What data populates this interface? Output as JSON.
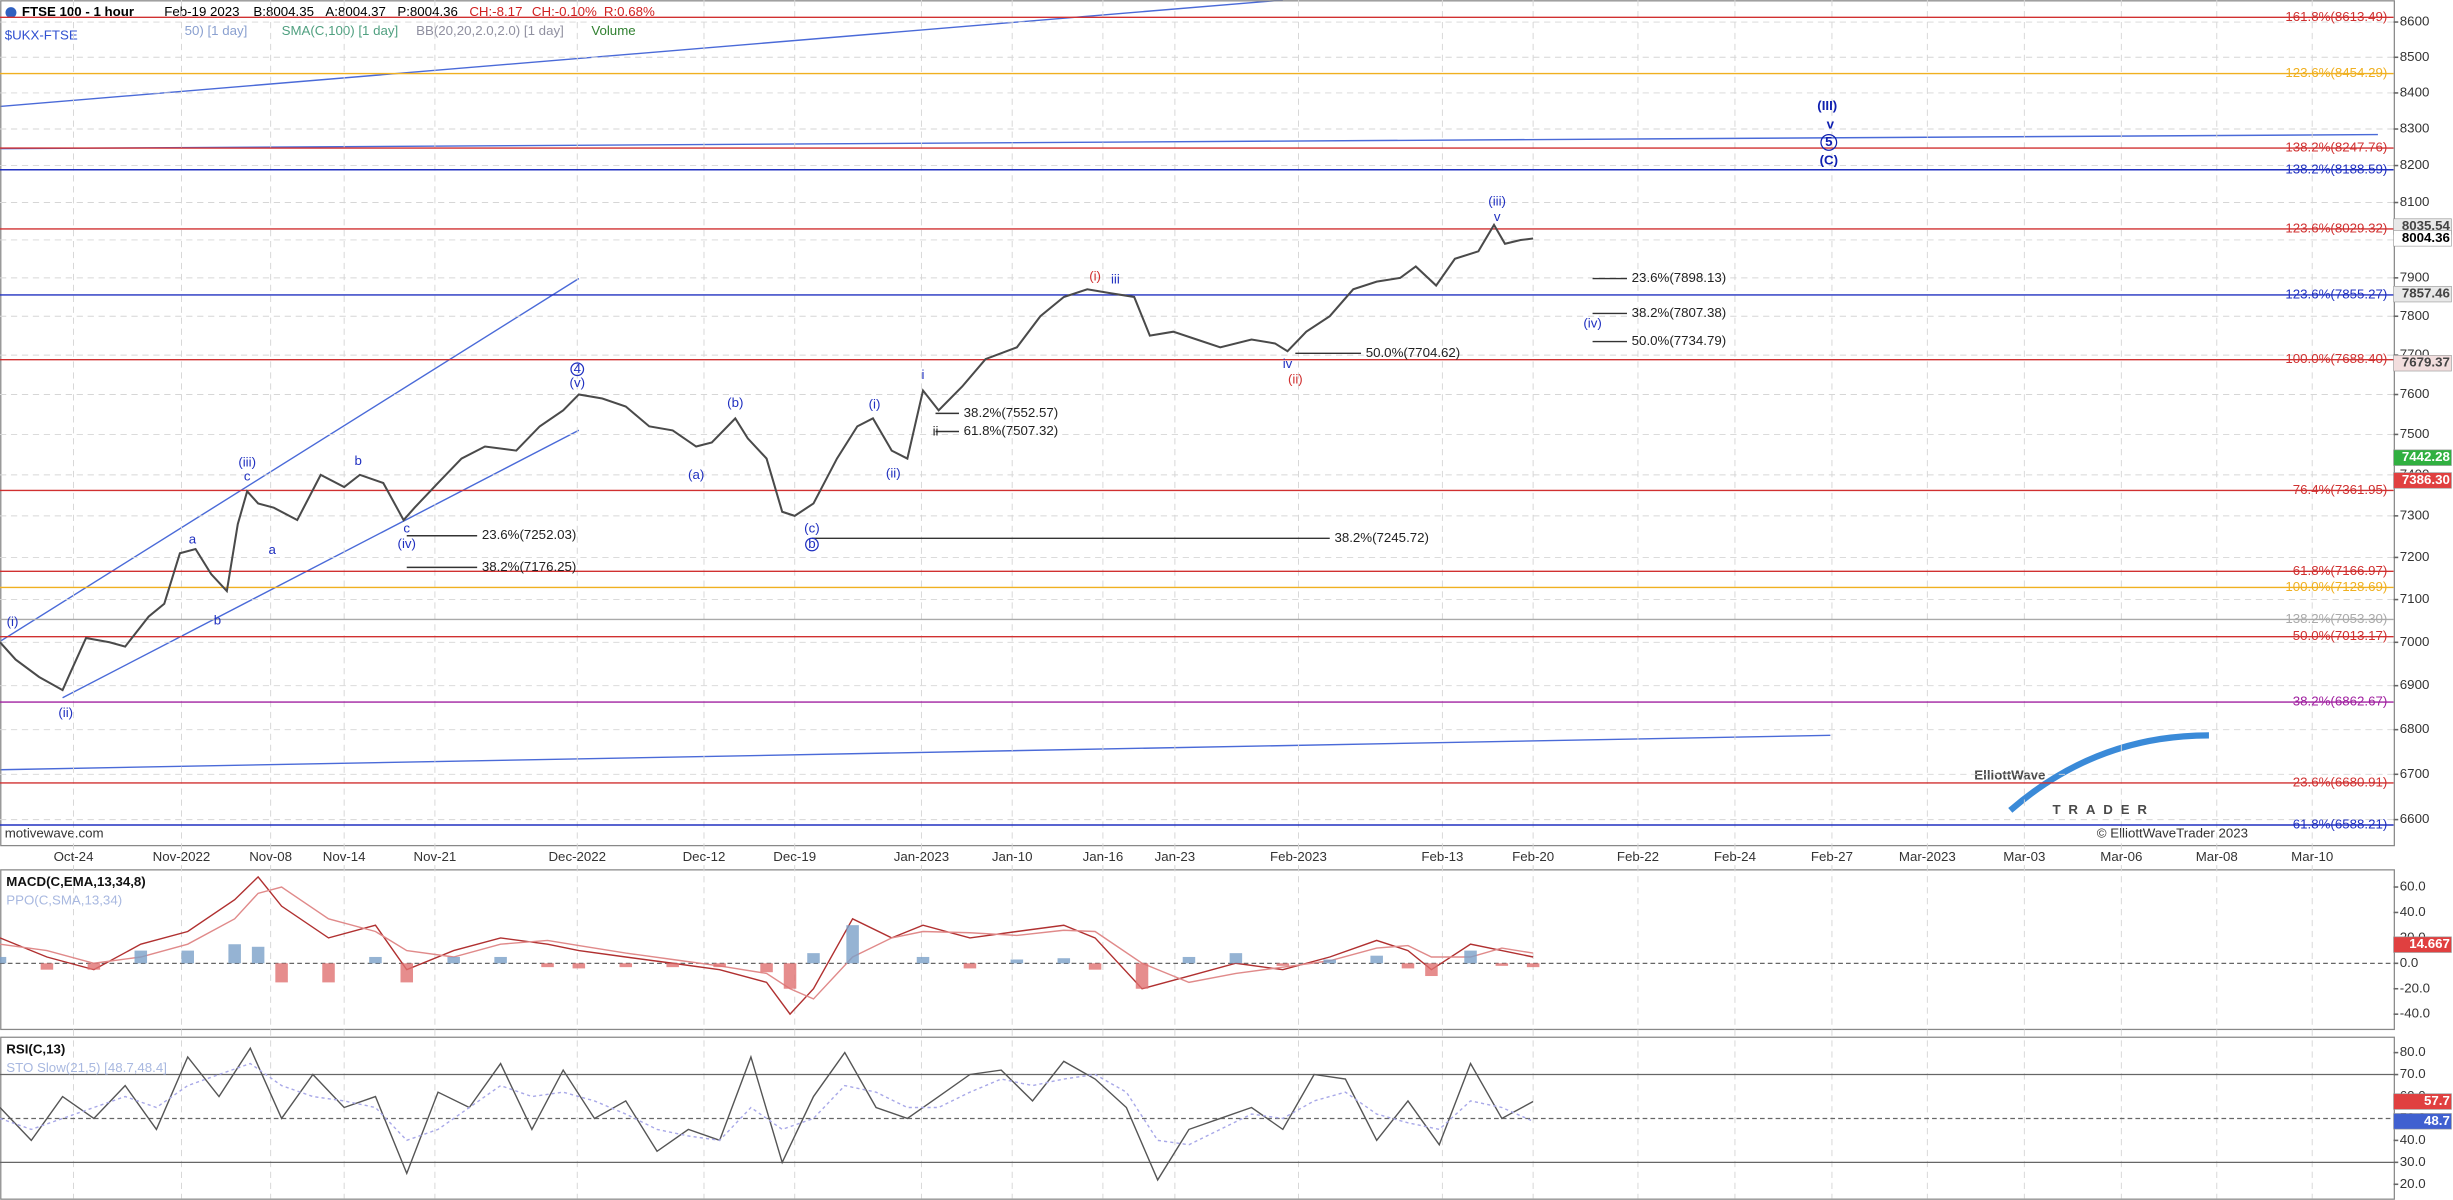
{
  "header": {
    "date": "Feb-19 2023",
    "bid": "B:8004.35",
    "ask": "A:8004.37",
    "price": "P:8004.36",
    "change": "CH:-8.17",
    "change_pct": "CH:-0.10%",
    "range": "R:0.68%",
    "studies": [
      "50) [1 day]",
      "SMA(C,100) [1 day]",
      "BB(20,20,2.0,2.0) [1 day]",
      "Volume"
    ],
    "source": "motivewave.com",
    "copyright": "© ElliottWaveTrader 2023",
    "logo_top": "ElliottWave",
    "logo_bottom": "TRADER"
  },
  "chart_data": [
    {
      "type": "line",
      "title": "$UKX-FTSE",
      "x": [
        0,
        10,
        25,
        40,
        45,
        55,
        70,
        80,
        95,
        105,
        115,
        125,
        135,
        145,
        152,
        158,
        165,
        175,
        190,
        205,
        220,
        230,
        245,
        258,
        265,
        280,
        295,
        310,
        330,
        345,
        360,
        370,
        385,
        400,
        415,
        430,
        445,
        455,
        470,
        478,
        490,
        500,
        508,
        520,
        535,
        548,
        558,
        570,
        580,
        590,
        600,
        615,
        630,
        650,
        665,
        680,
        695,
        710,
        725,
        735,
        750,
        765,
        780,
        800,
        815,
        823,
        835,
        850,
        865,
        880,
        895,
        905,
        918,
        930,
        945,
        955,
        962,
        972,
        980
      ],
      "series": [
        {
          "name": "FTSE 100 - 1 hour",
          "color": "#4a4a4a",
          "values": [
            7000,
            6960,
            6920,
            6890,
            6930,
            7010,
            7000,
            6990,
            7060,
            7090,
            7210,
            7220,
            7160,
            7120,
            7280,
            7360,
            7330,
            7320,
            7290,
            7400,
            7370,
            7400,
            7380,
            7290,
            7320,
            7380,
            7440,
            7470,
            7460,
            7520,
            7560,
            7600,
            7590,
            7570,
            7520,
            7510,
            7470,
            7480,
            7540,
            7490,
            7440,
            7310,
            7300,
            7330,
            7440,
            7520,
            7540,
            7460,
            7440,
            7610,
            7560,
            7620,
            7690,
            7720,
            7800,
            7850,
            7870,
            7860,
            7850,
            7750,
            7760,
            7740,
            7720,
            7740,
            7730,
            7710,
            7760,
            7800,
            7870,
            7890,
            7900,
            7930,
            7880,
            7950,
            7970,
            8040,
            7990,
            8000,
            8004
          ]
        }
      ],
      "xlim": [
        0,
        1530
      ],
      "xticks": [
        {
          "value": 47,
          "label": "Oct-24"
        },
        {
          "value": 116,
          "label": "Nov-2022"
        },
        {
          "value": 173,
          "label": "Nov-08"
        },
        {
          "value": 220,
          "label": "Nov-14"
        },
        {
          "value": 278,
          "label": "Nov-21"
        },
        {
          "value": 369,
          "label": "Dec-2022"
        },
        {
          "value": 450,
          "label": "Dec-12"
        },
        {
          "value": 508,
          "label": "Dec-19"
        },
        {
          "value": 589,
          "label": "Jan-2023"
        },
        {
          "value": 647,
          "label": "Jan-10"
        },
        {
          "value": 705,
          "label": "Jan-16"
        },
        {
          "value": 751,
          "label": "Jan-23"
        },
        {
          "value": 830,
          "label": "Feb-2023"
        },
        {
          "value": 922,
          "label": "Feb-13"
        },
        {
          "value": 980,
          "label": "Feb-20"
        },
        {
          "value": 1047,
          "label": "Feb-22"
        },
        {
          "value": 1109,
          "label": "Feb-24"
        },
        {
          "value": 1171,
          "label": "Feb-27"
        },
        {
          "value": 1232,
          "label": "Mar-2023"
        },
        {
          "value": 1294,
          "label": "Mar-03"
        },
        {
          "value": 1356,
          "label": "Mar-06"
        },
        {
          "value": 1417,
          "label": "Mar-08"
        },
        {
          "value": 1478,
          "label": "Mar-10"
        }
      ],
      "ylim": [
        6545,
        8654
      ],
      "log_scale": true,
      "grid": true,
      "yticks": [
        6600,
        6700,
        6800,
        6900,
        7000,
        7100,
        7200,
        7300,
        7400,
        7500,
        7600,
        7700,
        7800,
        7900,
        8000,
        8100,
        8200,
        8300,
        8400,
        8500,
        8600
      ],
      "fib_levels": [
        {
          "value": 8613.49,
          "label": "161.8%(8613.49)",
          "color": "#d03030"
        },
        {
          "value": 8454.29,
          "label": "123.6%(8454.29)",
          "color": "#f0b020"
        },
        {
          "value": 8247.76,
          "label": "138.2%(8247.76)",
          "color": "#d03030"
        },
        {
          "value": 8188.59,
          "label": "138.2%(8188.59)",
          "color": "#2030c0"
        },
        {
          "value": 8029.32,
          "label": "123.6%(8029.32)",
          "color": "#d03030"
        },
        {
          "value": 7855.27,
          "label": "123.6%(7855.27)",
          "color": "#2030c0"
        },
        {
          "value": 7688.4,
          "label": "100.0%(7688.40)",
          "color": "#d03030"
        },
        {
          "value": 7361.95,
          "label": "76.4%(7361.95)",
          "color": "#d03030"
        },
        {
          "value": 7166.97,
          "label": "61.8%(7166.97)",
          "color": "#d03030"
        },
        {
          "value": 7128.69,
          "label": "100.0%(7128.69)",
          "color": "#f0b020"
        },
        {
          "value": 7053.3,
          "label": "138.2%(7053.30)",
          "color": "#aaaaaa"
        },
        {
          "value": 7013.17,
          "label": "50.0%(7013.17)",
          "color": "#d03030"
        },
        {
          "value": 6862.67,
          "label": "38.2%(6862.67)",
          "color": "#a020a0"
        },
        {
          "value": 6680.91,
          "label": "23.6%(6680.91)",
          "color": "#d03030"
        },
        {
          "value": 6588.21,
          "label": "61.8%(6588.21)",
          "color": "#2030c0"
        }
      ],
      "retracements": [
        {
          "value": 7898.13,
          "label": "23.6%(7898.13)"
        },
        {
          "value": 7807.38,
          "label": "38.2%(7807.38)"
        },
        {
          "value": 7734.79,
          "label": "50.0%(7734.79)"
        },
        {
          "value": 7704.62,
          "label": "50.0%(7704.62)"
        },
        {
          "value": 7552.57,
          "label": "38.2%(7552.57)"
        },
        {
          "value": 7507.32,
          "label": "61.8%(7507.32)"
        },
        {
          "value": 7252.03,
          "label": "23.6%(7252.03)"
        },
        {
          "value": 7176.25,
          "label": "38.2%(7176.25)"
        },
        {
          "value": 7245.72,
          "label": "38.2%(7245.72)"
        }
      ],
      "wave_labels": [
        "(i)",
        "(ii)",
        "a",
        "b",
        "(iii)",
        "c",
        "a",
        "b",
        "c",
        "(iv)",
        "4",
        "(v)",
        "(a)",
        "(b)",
        "(c)",
        "b",
        "(i)",
        "(ii)",
        "i",
        "ii",
        "(i)",
        "iii",
        "iv",
        "(ii)",
        "(iii)",
        "v",
        "(iv)",
        "(III)",
        "v",
        "5",
        "(C)"
      ],
      "price_tags": [
        {
          "value": 8035.54,
          "label": "8035.54",
          "bg": "#e8e8e8",
          "fg": "#444"
        },
        {
          "value": 8004.36,
          "label": "8004.36",
          "bg": "#ffffff",
          "fg": "#000"
        },
        {
          "value": 7857.46,
          "label": "7857.46",
          "bg": "#e8e8e8",
          "fg": "#444"
        },
        {
          "value": 7679.37,
          "label": "7679.37",
          "bg": "#f2dede",
          "fg": "#444"
        },
        {
          "value": 7442.28,
          "label": "7442.28",
          "bg": "#30b040",
          "fg": "#fff"
        },
        {
          "value": 7386.3,
          "label": "7386.30",
          "bg": "#e04040",
          "fg": "#fff"
        }
      ]
    },
    {
      "type": "line",
      "title": "MACD(C,EMA,13,34,8)",
      "subtitle": "PPO(C,SMA,13,34)",
      "x": [
        0,
        30,
        60,
        90,
        120,
        150,
        165,
        180,
        210,
        240,
        260,
        290,
        320,
        350,
        370,
        400,
        430,
        460,
        490,
        505,
        520,
        545,
        570,
        590,
        620,
        650,
        680,
        700,
        730,
        760,
        790,
        820,
        850,
        880,
        900,
        915,
        940,
        960,
        980
      ],
      "series": [
        {
          "color": "#b03030",
          "values": [
            20,
            5,
            -5,
            15,
            25,
            50,
            68,
            45,
            20,
            30,
            -5,
            10,
            20,
            15,
            10,
            5,
            0,
            -5,
            -15,
            -40,
            -20,
            35,
            20,
            30,
            20,
            25,
            30,
            20,
            -20,
            -10,
            0,
            -5,
            5,
            18,
            10,
            -5,
            15,
            10,
            5
          ]
        },
        {
          "color": "#e08a8a",
          "values": [
            15,
            10,
            0,
            5,
            15,
            35,
            55,
            60,
            35,
            25,
            10,
            5,
            15,
            18,
            14,
            8,
            3,
            -2,
            -8,
            -20,
            -28,
            5,
            20,
            25,
            24,
            22,
            26,
            25,
            0,
            -15,
            -8,
            -3,
            2,
            12,
            14,
            5,
            5,
            12,
            8
          ]
        },
        {
          "type": "histogram",
          "color": "#7aa0c8",
          "negative_color": "#e07070",
          "values": [
            5,
            -5,
            -5,
            10,
            10,
            15,
            13,
            -15,
            -15,
            5,
            -15,
            5,
            5,
            -3,
            -4,
            -3,
            -3,
            -3,
            -7,
            -20,
            8,
            30,
            0,
            5,
            -4,
            3,
            4,
            -5,
            -20,
            5,
            8,
            -2,
            3,
            6,
            -4,
            -10,
            10,
            -2,
            -3
          ]
        }
      ],
      "xlim": [
        0,
        1530
      ],
      "ylim": [
        -52,
        73.5
      ],
      "yticks": [
        {
          "value": -40,
          "label": "-40.0"
        },
        {
          "value": -20,
          "label": "-20.0"
        },
        {
          "value": 0,
          "label": "0.0"
        },
        {
          "value": 20,
          "label": "20.0"
        },
        {
          "value": 40,
          "label": "40.0"
        },
        {
          "value": 60,
          "label": "60.0"
        }
      ],
      "ref_lines": [
        0
      ],
      "price_tags": [
        {
          "value": 14.667,
          "label": "14.667",
          "bg": "#e04040",
          "fg": "#fff"
        }
      ]
    },
    {
      "type": "line",
      "title": "RSI(C,13)",
      "subtitle": "STO Slow(21,5) [48.7,48.4]",
      "x": [
        0,
        20,
        40,
        60,
        80,
        100,
        120,
        140,
        160,
        180,
        200,
        220,
        240,
        260,
        280,
        300,
        320,
        340,
        360,
        380,
        400,
        420,
        440,
        460,
        480,
        500,
        520,
        540,
        560,
        580,
        600,
        620,
        640,
        660,
        680,
        700,
        720,
        740,
        760,
        780,
        800,
        820,
        840,
        860,
        880,
        900,
        920,
        940,
        960,
        980
      ],
      "series": [
        {
          "color": "#555555",
          "values": [
            55,
            40,
            60,
            50,
            65,
            45,
            78,
            60,
            82,
            50,
            70,
            55,
            60,
            25,
            62,
            55,
            75,
            45,
            72,
            50,
            58,
            35,
            45,
            40,
            78,
            30,
            60,
            80,
            55,
            50,
            60,
            70,
            72,
            58,
            76,
            68,
            55,
            22,
            45,
            50,
            55,
            45,
            70,
            68,
            40,
            58,
            38,
            75,
            50,
            57.7
          ]
        },
        {
          "color": "#a8a8e8",
          "dashed": true,
          "values": [
            50,
            45,
            50,
            55,
            60,
            55,
            65,
            70,
            75,
            65,
            60,
            58,
            55,
            40,
            45,
            55,
            65,
            60,
            62,
            58,
            52,
            45,
            42,
            40,
            55,
            45,
            50,
            65,
            62,
            55,
            55,
            62,
            68,
            65,
            68,
            70,
            62,
            40,
            38,
            45,
            52,
            50,
            58,
            62,
            52,
            48,
            45,
            58,
            55,
            48.7
          ]
        }
      ],
      "xlim": [
        0,
        1530
      ],
      "ylim": [
        15,
        87
      ],
      "yticks": [
        {
          "value": 20,
          "label": "20.0"
        },
        {
          "value": 30,
          "label": "30.0"
        },
        {
          "value": 40,
          "label": "40.0"
        },
        {
          "value": 50,
          "label": "50.0"
        },
        {
          "value": 60,
          "label": "60.0"
        },
        {
          "value": 70,
          "label": "70.0"
        },
        {
          "value": 80,
          "label": "80.0"
        }
      ],
      "ref_lines": [
        70,
        50,
        30
      ],
      "price_tags": [
        {
          "value": 57.7,
          "label": "57.7",
          "bg": "#e04040",
          "fg": "#fff"
        },
        {
          "value": 48.7,
          "label": "48.7",
          "bg": "#4060d0",
          "fg": "#fff"
        }
      ]
    }
  ]
}
